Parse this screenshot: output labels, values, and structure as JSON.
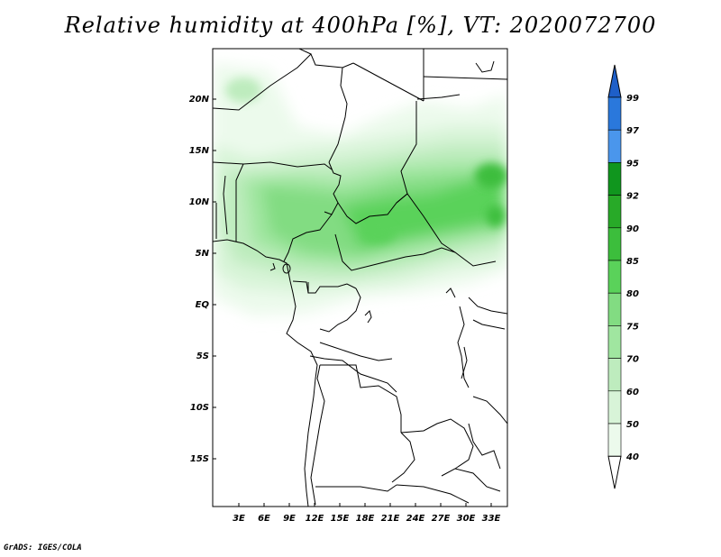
{
  "title": "Relative humidity at 400hPa [%], VT: 2020072700",
  "credit": "GrADS: IGES/COLA",
  "lat_labels": [
    "20N",
    "15N",
    "10N",
    "5N",
    "EQ",
    "5S",
    "10S",
    "15S"
  ],
  "lon_labels": [
    "3E",
    "6E",
    "9E",
    "12E",
    "15E",
    "18E",
    "21E",
    "24E",
    "27E",
    "30E",
    "33E"
  ],
  "colorbar": {
    "labels": [
      "99",
      "97",
      "95",
      "92",
      "90",
      "85",
      "80",
      "75",
      "70",
      "60",
      "50",
      "40"
    ],
    "colors": [
      "#1e5fc8",
      "#2a78dc",
      "#4a96ec",
      "#10961e",
      "#28aa28",
      "#3cbe3c",
      "#5ad25a",
      "#82dc82",
      "#a0e6a0",
      "#beecbe",
      "#d8f4d8",
      "#ecfaec"
    ]
  }
}
